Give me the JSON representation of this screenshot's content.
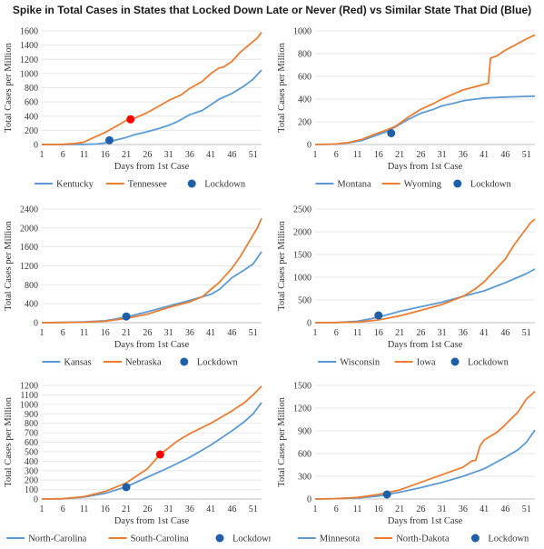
{
  "title": "Spike in Total Cases in States that Locked Down Late or Never (Red) vs Similar State That Did (Blue)",
  "colors": {
    "blue": "#5b9bd5",
    "orange": "#ed7d31",
    "lockdown": "#1f5fa8",
    "late_lockdown": "#ff0000"
  },
  "chart_data": [
    {
      "type": "line",
      "xlabel": "Days from 1st Case",
      "ylabel": "Total Cases per Million",
      "xticks": [
        1,
        6,
        11,
        16,
        21,
        26,
        31,
        36,
        41,
        46,
        51
      ],
      "yticks": [
        0,
        200,
        400,
        600,
        800,
        1000,
        1200,
        1400,
        1600
      ],
      "xlim": [
        1,
        53
      ],
      "ylim": [
        0,
        1600
      ],
      "legend": "bottom",
      "legend_labels": [
        "Kentucky",
        "Tennessee",
        "Lockdown"
      ],
      "series": [
        {
          "name": "Kentucky",
          "color": "blue",
          "points": [
            [
              1,
              0
            ],
            [
              6,
              0
            ],
            [
              11,
              2
            ],
            [
              14,
              8
            ],
            [
              16,
              22
            ],
            [
              18,
              55
            ],
            [
              19,
              70
            ],
            [
              21,
              100
            ],
            [
              23,
              140
            ],
            [
              26,
              180
            ],
            [
              29,
              230
            ],
            [
              31,
              270
            ],
            [
              33,
              320
            ],
            [
              36,
              420
            ],
            [
              39,
              480
            ],
            [
              41,
              560
            ],
            [
              43,
              640
            ],
            [
              46,
              720
            ],
            [
              49,
              830
            ],
            [
              51,
              920
            ],
            [
              53,
              1050
            ]
          ]
        },
        {
          "name": "Tennessee",
          "color": "orange",
          "points": [
            [
              1,
              0
            ],
            [
              6,
              3
            ],
            [
              9,
              15
            ],
            [
              11,
              35
            ],
            [
              13,
              90
            ],
            [
              16,
              170
            ],
            [
              19,
              270
            ],
            [
              21,
              340
            ],
            [
              23,
              370
            ],
            [
              26,
              450
            ],
            [
              29,
              550
            ],
            [
              31,
              620
            ],
            [
              34,
              700
            ],
            [
              36,
              790
            ],
            [
              39,
              890
            ],
            [
              41,
              1000
            ],
            [
              43,
              1080
            ],
            [
              44,
              1090
            ],
            [
              46,
              1170
            ],
            [
              48,
              1300
            ],
            [
              50,
              1400
            ],
            [
              52,
              1500
            ],
            [
              53,
              1580
            ]
          ]
        }
      ],
      "markers": [
        {
          "x": 17,
          "y": 60,
          "color": "lockdown"
        },
        {
          "x": 22,
          "y": 355,
          "color": "late_lockdown"
        }
      ]
    },
    {
      "type": "line",
      "xlabel": "Days from 1st Case",
      "ylabel": "Total Cases per Million",
      "xticks": [
        1,
        6,
        11,
        16,
        21,
        26,
        31,
        36,
        41,
        46,
        51
      ],
      "yticks": [
        0,
        200,
        400,
        600,
        800,
        1000
      ],
      "xlim": [
        1,
        53
      ],
      "ylim": [
        0,
        1000
      ],
      "legend": "bottom",
      "legend_labels": [
        "Montana",
        "Wyoming",
        "Lockdown"
      ],
      "series": [
        {
          "name": "Montana",
          "color": "blue",
          "points": [
            [
              1,
              0
            ],
            [
              6,
              3
            ],
            [
              9,
              15
            ],
            [
              12,
              35
            ],
            [
              15,
              75
            ],
            [
              18,
              115
            ],
            [
              20,
              155
            ],
            [
              23,
              220
            ],
            [
              26,
              275
            ],
            [
              29,
              310
            ],
            [
              31,
              340
            ],
            [
              34,
              365
            ],
            [
              36,
              385
            ],
            [
              39,
              400
            ],
            [
              41,
              410
            ],
            [
              43,
              413
            ],
            [
              46,
              418
            ],
            [
              49,
              421
            ],
            [
              51,
              424
            ],
            [
              53,
              425
            ]
          ]
        },
        {
          "name": "Wyoming",
          "color": "orange",
          "points": [
            [
              1,
              0
            ],
            [
              6,
              5
            ],
            [
              9,
              18
            ],
            [
              12,
              45
            ],
            [
              15,
              90
            ],
            [
              18,
              130
            ],
            [
              20,
              160
            ],
            [
              23,
              240
            ],
            [
              26,
              310
            ],
            [
              29,
              360
            ],
            [
              31,
              400
            ],
            [
              34,
              450
            ],
            [
              36,
              480
            ],
            [
              39,
              510
            ],
            [
              41,
              530
            ],
            [
              42,
              540
            ],
            [
              42.5,
              760
            ],
            [
              44,
              780
            ],
            [
              46,
              830
            ],
            [
              49,
              890
            ],
            [
              51,
              930
            ],
            [
              53,
              965
            ]
          ]
        }
      ],
      "markers": [
        {
          "x": 19,
          "y": 100,
          "color": "lockdown"
        }
      ]
    },
    {
      "type": "line",
      "xlabel": "Days from 1st Case",
      "ylabel": "Total Cases per Million",
      "xticks": [
        1,
        6,
        11,
        16,
        21,
        26,
        31,
        36,
        41,
        46,
        51
      ],
      "yticks": [
        0,
        400,
        800,
        1200,
        1600,
        2000,
        2400
      ],
      "xlim": [
        1,
        53
      ],
      "ylim": [
        0,
        2400
      ],
      "legend": "bottom",
      "legend_labels": [
        "Kansas",
        "Nebraska",
        "Lockdown"
      ],
      "series": [
        {
          "name": "Kansas",
          "color": "blue",
          "points": [
            [
              1,
              0
            ],
            [
              6,
              5
            ],
            [
              11,
              15
            ],
            [
              16,
              40
            ],
            [
              21,
              120
            ],
            [
              26,
              230
            ],
            [
              31,
              350
            ],
            [
              36,
              470
            ],
            [
              41,
              600
            ],
            [
              43,
              700
            ],
            [
              46,
              950
            ],
            [
              49,
              1120
            ],
            [
              51,
              1240
            ],
            [
              53,
              1500
            ]
          ]
        },
        {
          "name": "Nebraska",
          "color": "orange",
          "points": [
            [
              1,
              0
            ],
            [
              6,
              3
            ],
            [
              11,
              10
            ],
            [
              16,
              30
            ],
            [
              21,
              90
            ],
            [
              26,
              180
            ],
            [
              31,
              320
            ],
            [
              36,
              440
            ],
            [
              39,
              550
            ],
            [
              41,
              700
            ],
            [
              43,
              850
            ],
            [
              46,
              1150
            ],
            [
              48,
              1400
            ],
            [
              50,
              1700
            ],
            [
              52,
              2000
            ],
            [
              53,
              2200
            ]
          ]
        }
      ],
      "markers": [
        {
          "x": 21,
          "y": 130,
          "color": "lockdown"
        }
      ]
    },
    {
      "type": "line",
      "xlabel": "Days from 1st Case",
      "ylabel": "Total Cases per Million",
      "xticks": [
        1,
        6,
        11,
        16,
        21,
        26,
        31,
        36,
        41,
        46,
        51
      ],
      "yticks": [
        0,
        500,
        1000,
        1500,
        2000,
        2500
      ],
      "xlim": [
        1,
        53
      ],
      "ylim": [
        0,
        2500
      ],
      "legend": "bottom",
      "legend_labels": [
        "Wisconsin",
        "Iowa",
        "Lockdown"
      ],
      "series": [
        {
          "name": "Wisconsin",
          "color": "blue",
          "points": [
            [
              1,
              0
            ],
            [
              6,
              5
            ],
            [
              11,
              30
            ],
            [
              16,
              120
            ],
            [
              21,
              250
            ],
            [
              26,
              350
            ],
            [
              31,
              450
            ],
            [
              36,
              580
            ],
            [
              41,
              700
            ],
            [
              46,
              880
            ],
            [
              49,
              1000
            ],
            [
              51,
              1080
            ],
            [
              53,
              1180
            ]
          ]
        },
        {
          "name": "Iowa",
          "color": "orange",
          "points": [
            [
              1,
              0
            ],
            [
              6,
              3
            ],
            [
              11,
              15
            ],
            [
              16,
              60
            ],
            [
              21,
              150
            ],
            [
              26,
              270
            ],
            [
              31,
              400
            ],
            [
              36,
              580
            ],
            [
              39,
              750
            ],
            [
              41,
              900
            ],
            [
              43,
              1100
            ],
            [
              46,
              1400
            ],
            [
              48,
              1700
            ],
            [
              50,
              1950
            ],
            [
              52,
              2200
            ],
            [
              53,
              2280
            ]
          ]
        }
      ],
      "markers": [
        {
          "x": 16,
          "y": 160,
          "color": "lockdown"
        }
      ]
    },
    {
      "type": "line",
      "xlabel": "Days from 1st Case",
      "ylabel": "Total Cases per Million",
      "xticks": [
        1,
        6,
        11,
        16,
        21,
        26,
        31,
        36,
        41,
        46,
        51
      ],
      "yticks": [
        0,
        100,
        200,
        300,
        400,
        500,
        600,
        700,
        800,
        900,
        1000,
        1100,
        1200
      ],
      "xlim": [
        1,
        53
      ],
      "ylim": [
        0,
        1200
      ],
      "legend": "bottom",
      "legend_labels": [
        "North-Carolina",
        "South-Carolina",
        "Lockdown"
      ],
      "series": [
        {
          "name": "North-Carolina",
          "color": "blue",
          "points": [
            [
              1,
              0
            ],
            [
              6,
              3
            ],
            [
              11,
              20
            ],
            [
              16,
              60
            ],
            [
              21,
              130
            ],
            [
              26,
              230
            ],
            [
              31,
              330
            ],
            [
              36,
              440
            ],
            [
              41,
              570
            ],
            [
              46,
              720
            ],
            [
              49,
              820
            ],
            [
              51,
              900
            ],
            [
              53,
              1020
            ]
          ]
        },
        {
          "name": "South-Carolina",
          "color": "orange",
          "points": [
            [
              1,
              0
            ],
            [
              6,
              3
            ],
            [
              11,
              25
            ],
            [
              16,
              80
            ],
            [
              21,
              170
            ],
            [
              26,
              320
            ],
            [
              29,
              470
            ],
            [
              31,
              540
            ],
            [
              33,
              610
            ],
            [
              36,
              690
            ],
            [
              41,
              800
            ],
            [
              46,
              930
            ],
            [
              49,
              1020
            ],
            [
              51,
              1100
            ],
            [
              53,
              1190
            ]
          ]
        }
      ],
      "markers": [
        {
          "x": 21,
          "y": 125,
          "color": "lockdown"
        },
        {
          "x": 29,
          "y": 470,
          "color": "late_lockdown"
        }
      ]
    },
    {
      "type": "line",
      "xlabel": "Days from 1st Case",
      "ylabel": "Total Cases per Million",
      "xticks": [
        1,
        6,
        11,
        16,
        21,
        26,
        31,
        36,
        41,
        46,
        51
      ],
      "yticks": [
        0,
        300,
        600,
        900,
        1200,
        1500
      ],
      "xlim": [
        1,
        53
      ],
      "ylim": [
        0,
        1500
      ],
      "legend": "bottom",
      "legend_labels": [
        "Minnesota",
        "North-Dakota",
        "Lockdown"
      ],
      "series": [
        {
          "name": "Minnesota",
          "color": "blue",
          "points": [
            [
              1,
              0
            ],
            [
              6,
              5
            ],
            [
              11,
              15
            ],
            [
              16,
              40
            ],
            [
              21,
              90
            ],
            [
              26,
              150
            ],
            [
              31,
              220
            ],
            [
              36,
              300
            ],
            [
              41,
              400
            ],
            [
              46,
              550
            ],
            [
              49,
              650
            ],
            [
              51,
              750
            ],
            [
              53,
              910
            ]
          ]
        },
        {
          "name": "North-Dakota",
          "color": "orange",
          "points": [
            [
              1,
              0
            ],
            [
              6,
              5
            ],
            [
              11,
              20
            ],
            [
              16,
              60
            ],
            [
              21,
              120
            ],
            [
              26,
              220
            ],
            [
              31,
              320
            ],
            [
              36,
              420
            ],
            [
              38,
              500
            ],
            [
              39,
              510
            ],
            [
              40,
              700
            ],
            [
              41,
              780
            ],
            [
              44,
              880
            ],
            [
              46,
              980
            ],
            [
              49,
              1150
            ],
            [
              51,
              1320
            ],
            [
              53,
              1420
            ]
          ]
        }
      ],
      "markers": [
        {
          "x": 18,
          "y": 60,
          "color": "lockdown"
        }
      ]
    }
  ]
}
